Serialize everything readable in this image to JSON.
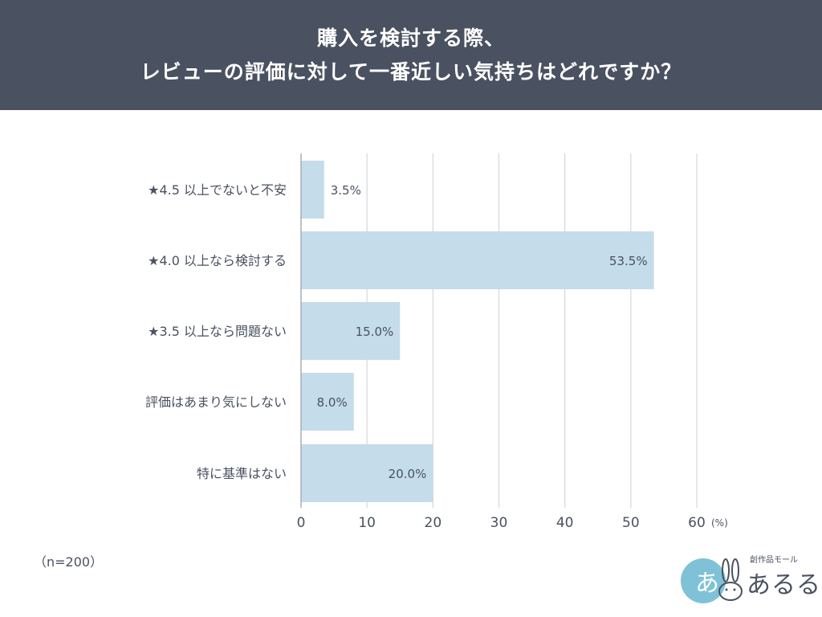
{
  "header": {
    "title_line1": "購入を検討する際、",
    "title_line2": "レビューの評価に対して一番近しい気持ちはどれですか？"
  },
  "colors": {
    "header_bg": "#4a5160",
    "bar": "#c5dcea",
    "text": "#4a5160",
    "grid": "#d5d8dc"
  },
  "chart_data": {
    "type": "bar",
    "orientation": "horizontal",
    "categories": [
      "★4.5 以上でないと不安",
      "★4.0 以上なら検討する",
      "★3.5 以上なら問題ない",
      "評価はあまり気にしない",
      "特に基準はない"
    ],
    "values": [
      3.5,
      53.5,
      15.0,
      8.0,
      20.0
    ],
    "value_labels": [
      "3.5%",
      "53.5%",
      "15.0%",
      "8.0%",
      "20.0%"
    ],
    "xlim": [
      0,
      60
    ],
    "xticks": [
      "0",
      "10",
      "20",
      "30",
      "40",
      "50",
      "60"
    ],
    "xunit": "(%)",
    "grid": true
  },
  "note": "（n=200）",
  "brand": {
    "tag": "創作品モール",
    "name": "あるる",
    "logo_text": "あ"
  }
}
